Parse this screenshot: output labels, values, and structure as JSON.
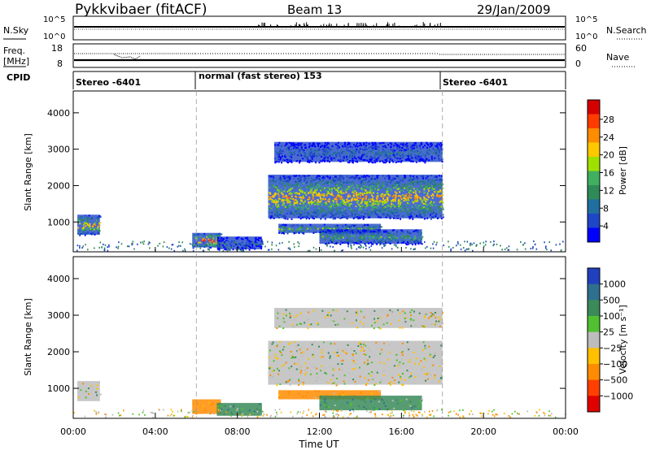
{
  "header": {
    "radar": "Pykkvibaer (fitACF)",
    "beam": "Beam 13",
    "date": "29/Jan/2009"
  },
  "nsky_panel": {
    "left_label": "N.Sky",
    "right_label": "N.Search",
    "left_ticks": [
      "10^5",
      "10^0"
    ],
    "right_ticks": [
      "10^5",
      "10^0"
    ]
  },
  "freq_panel": {
    "left_label_top": "Freq.",
    "left_label_bottom": "[MHz]",
    "right_label": "Nave",
    "left_ticks": [
      "18",
      "8"
    ],
    "right_ticks": [
      "60",
      "0"
    ]
  },
  "cpid_panel": {
    "label": "CPID",
    "segments": [
      {
        "start_hour": 0,
        "text": "Stereo -6401"
      },
      {
        "start_hour": 6,
        "text": "normal (fast stereo) 153"
      },
      {
        "start_hour": 18,
        "text": "Stereo -6401"
      }
    ]
  },
  "power_colorbar": {
    "label": "Power [dB]",
    "ticks": [
      "28",
      "24",
      "20",
      "16",
      "12",
      "8",
      "4"
    ],
    "colors": [
      "#d40000",
      "#ff3c00",
      "#ff8c00",
      "#ffc800",
      "#a0e000",
      "#40b060",
      "#2e8b57",
      "#206fa0",
      "#1e46c8",
      "#0000ff"
    ]
  },
  "velocity_colorbar": {
    "label": "Velocity [m s⁻¹]",
    "ticks": [
      "1000",
      "500",
      "100",
      "25",
      "−25",
      "−100",
      "−500",
      "−1000"
    ],
    "colors": [
      "#2040c0",
      "#2f6f8f",
      "#3a8a5a",
      "#50c030",
      "#bdbdbd",
      "#ffc000",
      "#ff8c00",
      "#ff4000",
      "#e00000"
    ]
  },
  "chart_data": {
    "type": "heatmap",
    "xlabel": "Time UT",
    "ylabel": "Slant Range [km]",
    "x_ticks": [
      "00:00",
      "04:00",
      "08:00",
      "12:00",
      "16:00",
      "20:00",
      "00:00"
    ],
    "x_range_hours": [
      0,
      24
    ],
    "y_ticks": [
      "1000",
      "2000",
      "3000",
      "4000"
    ],
    "y_range_km": [
      180,
      4600
    ],
    "mode_change_hours": [
      6,
      18
    ],
    "power_regions": [
      {
        "t0": 0.2,
        "t1": 1.3,
        "r0": 650,
        "r1": 1200,
        "peak_db": 26
      },
      {
        "t0": 5.8,
        "t1": 7.2,
        "r0": 300,
        "r1": 700,
        "peak_db": 30
      },
      {
        "t0": 7.0,
        "t1": 9.2,
        "r0": 250,
        "r1": 600,
        "peak_db": 10
      },
      {
        "t0": 9.5,
        "t1": 18.0,
        "r0": 1100,
        "r1": 2300,
        "peak_db": 26
      },
      {
        "t0": 9.8,
        "t1": 18.0,
        "r0": 2650,
        "r1": 3200,
        "peak_db": 12
      },
      {
        "t0": 10.0,
        "t1": 15.0,
        "r0": 700,
        "r1": 950,
        "peak_db": 20
      },
      {
        "t0": 12.0,
        "t1": 17.0,
        "r0": 400,
        "r1": 800,
        "peak_db": 18
      }
    ],
    "velocity_regions": [
      {
        "t0": 0.2,
        "t1": 1.3,
        "r0": 650,
        "r1": 1200,
        "velocity": 0
      },
      {
        "t0": 5.8,
        "t1": 7.2,
        "r0": 300,
        "r1": 700,
        "velocity": -150
      },
      {
        "t0": 7.0,
        "t1": 9.2,
        "r0": 250,
        "r1": 600,
        "velocity": 150
      },
      {
        "t0": 9.5,
        "t1": 18.0,
        "r0": 1100,
        "r1": 2300,
        "velocity": 0
      },
      {
        "t0": 9.8,
        "t1": 18.0,
        "r0": 2650,
        "r1": 3200,
        "velocity": 0
      },
      {
        "t0": 10.0,
        "t1": 15.0,
        "r0": 700,
        "r1": 950,
        "velocity": -120
      },
      {
        "t0": 12.0,
        "t1": 17.0,
        "r0": 400,
        "r1": 800,
        "velocity": 120
      }
    ]
  }
}
